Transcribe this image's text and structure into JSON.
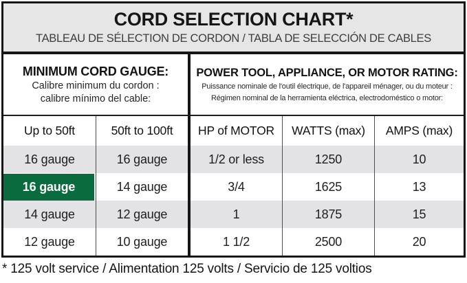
{
  "header": {
    "title": "CORD SELECTION CHART*",
    "subtitle": "TABLEAU DE SÉLECTION DE CORDON / TABLA DE SELECCIÓN DE CABLES"
  },
  "sections": {
    "left": {
      "heading": "MINIMUM CORD GAUGE:",
      "sub_fr": "Calibre minimum du cordon :",
      "sub_es": "calibre mínimo del cable:"
    },
    "right": {
      "heading": "POWER TOOL, APPLIANCE, OR MOTOR RATING:",
      "sub_fr": "Puissance nominale de l'outil électrique, de l'appareil ménager, ou du moteur :",
      "sub_es": "Régimen nominal de la herramienta eléctrica, electrodoméstico o motor:"
    }
  },
  "footnote": "* 125 volt service / Alimentation 125 volts / Servicio de 125 voltios",
  "colors": {
    "highlight_green": "#0a6b3e",
    "row_stripe_gray": "#e3e3e6",
    "masthead_gray": "#e6e6e6",
    "border_black": "#161616"
  },
  "chart_data": {
    "type": "table",
    "title": "CORD SELECTION CHART*",
    "columns": [
      "Up to 50ft",
      "50ft to 100ft",
      "HP of MOTOR",
      "WATTS (max)",
      "AMPS (max)"
    ],
    "rows": [
      [
        "16 gauge",
        "16 gauge",
        "1/2 or less",
        "1250",
        "10"
      ],
      [
        "16 gauge",
        "14 gauge",
        "3/4",
        "1625",
        "13"
      ],
      [
        "14 gauge",
        "12 gauge",
        "1",
        "1875",
        "15"
      ],
      [
        "12 gauge",
        "10 gauge",
        "1 1/2",
        "2500",
        "20"
      ]
    ],
    "highlighted_cell": {
      "row_index": 1,
      "col_index": 0,
      "value": "16 gauge"
    },
    "layout_hints": {
      "striped_rows": [
        0,
        2
      ],
      "thick_divider_after_column": 1,
      "grid": "on"
    }
  }
}
